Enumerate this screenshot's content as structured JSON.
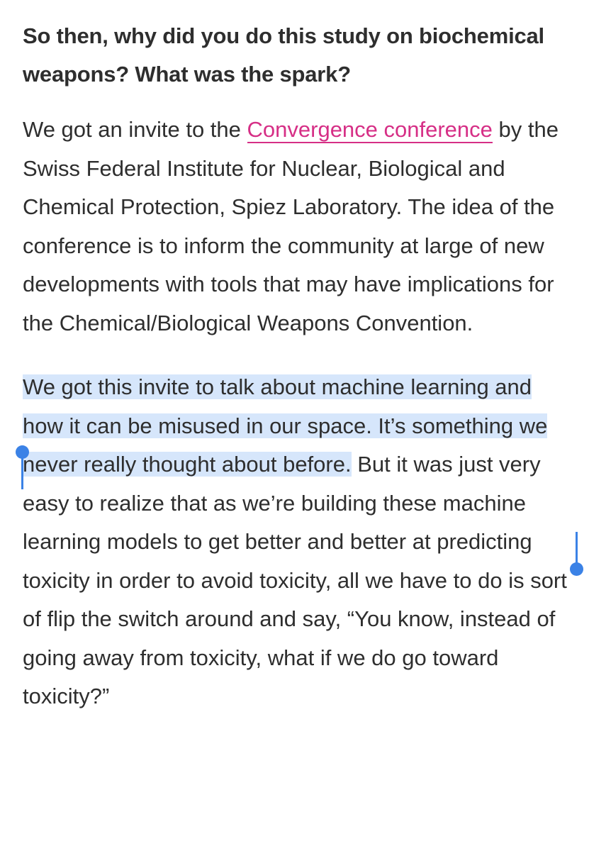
{
  "article": {
    "question": "So then, why did you do this study on biochemical weapons? What was the spark?",
    "paragraph1": {
      "before_link": "We got an invite to the ",
      "link_text": "Convergence conference",
      "after_link": " by the Swiss Federal Institute for Nuclear, Biological and Chemical Protection, Spiez Laboratory. The idea of the conference is to inform the community at large of new developments with tools that may have implications for the Chemical/Biological Weapons Convention."
    },
    "paragraph2": {
      "selected_text": "We got this invite to talk about machine learning and how it can be misused in our space. It’s something we never really thought about before.",
      "rest_text": " But it was just very easy to realize that as we’re building these machine learning models to get better and better at predicting toxicity in order to avoid toxicity, all we have to do is sort of flip the switch around and say, “You know, instead of going away from toxicity, what if we do go toward toxicity?”"
    }
  },
  "colors": {
    "text": "#2e2e2e",
    "link": "#d62f86",
    "selection": "#d6e6fb",
    "selection_handle": "#3b82e6"
  }
}
